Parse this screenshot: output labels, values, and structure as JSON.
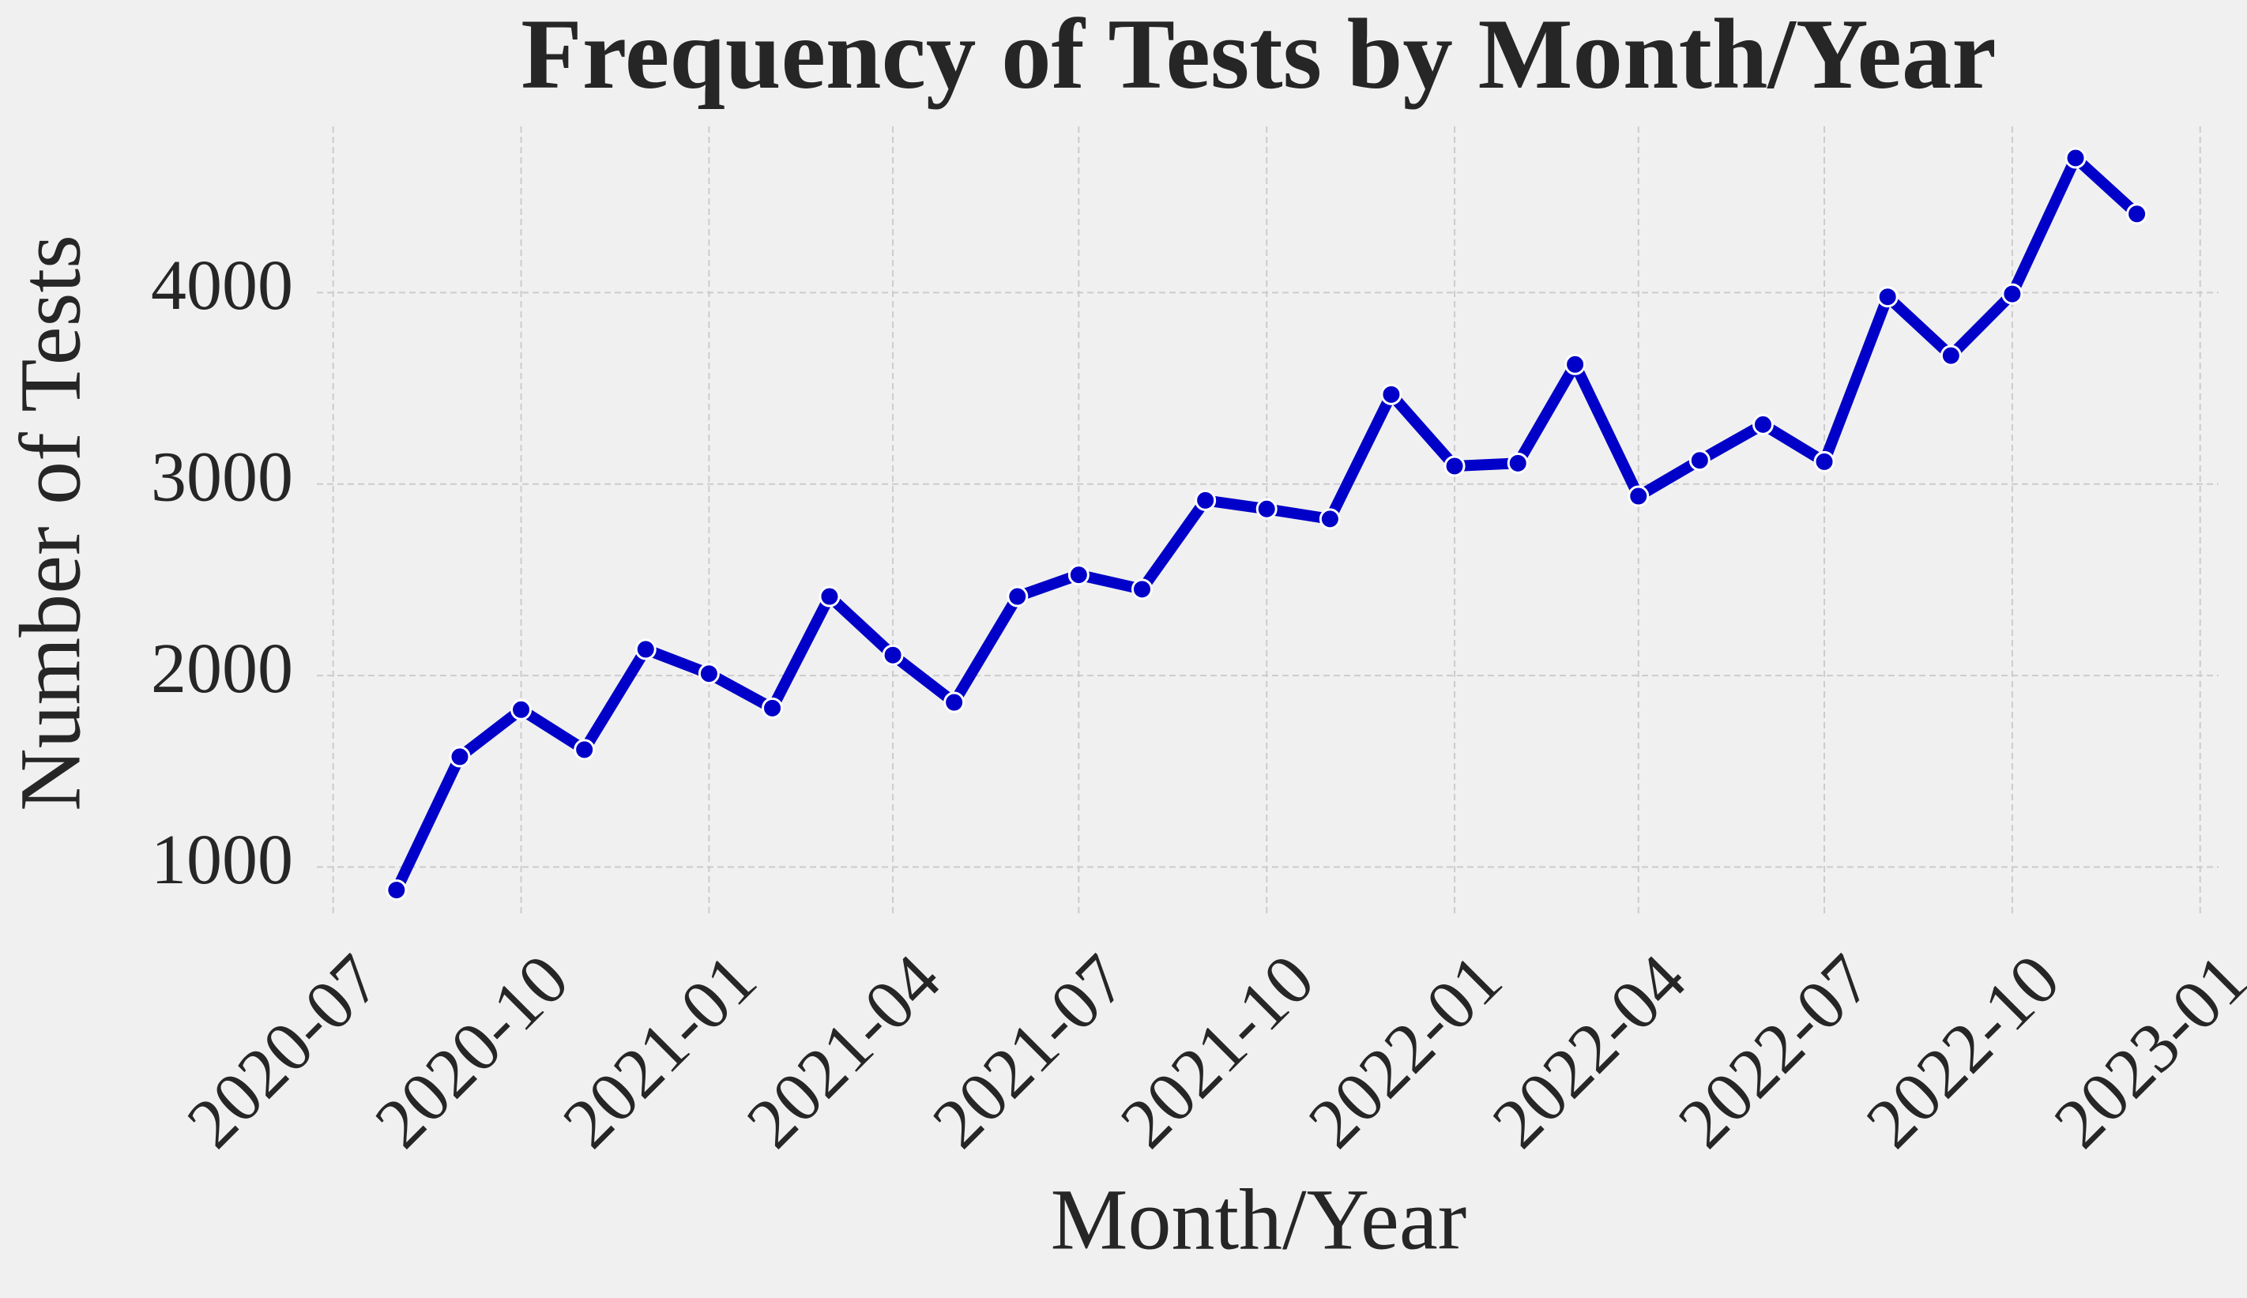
{
  "chart_data": {
    "type": "line",
    "title": "Frequency of Tests by Month/Year",
    "x_label": "Month/Year",
    "y_label": "Number of Tests",
    "x": [
      "2020-08",
      "2020-09",
      "2020-10",
      "2020-11",
      "2020-12",
      "2021-01",
      "2021-02",
      "2021-03",
      "2021-04",
      "2021-05",
      "2021-06",
      "2021-07",
      "2021-08",
      "2021-09",
      "2021-10",
      "2021-11",
      "2021-12",
      "2022-01",
      "2022-02",
      "2022-03",
      "2022-04",
      "2022-05",
      "2022-06",
      "2022-07",
      "2022-08",
      "2022-09",
      "2022-10",
      "2022-11",
      "2022-12"
    ],
    "series": [
      {
        "name": "Number of Tests",
        "color": "#0000c8",
        "values": [
          880,
          1576,
          1822,
          1613,
          2137,
          2010,
          1830,
          2413,
          2107,
          1860,
          2413,
          2526,
          2451,
          2915,
          2870,
          2818,
          3468,
          3094,
          3109,
          3625,
          2937,
          3124,
          3311,
          3117,
          3978,
          3671,
          3993,
          4703,
          4411
        ]
      }
    ],
    "xlim": [
      "2020-06-23",
      "2023-01-10"
    ],
    "xticks": [
      "2020-07",
      "2020-10",
      "2021-01",
      "2021-04",
      "2021-07",
      "2021-10",
      "2022-01",
      "2022-04",
      "2022-07",
      "2022-10",
      "2023-01"
    ],
    "ylim": [
      738,
      4868
    ],
    "yticks": [
      1000,
      2000,
      3000,
      4000
    ],
    "grid": true
  }
}
